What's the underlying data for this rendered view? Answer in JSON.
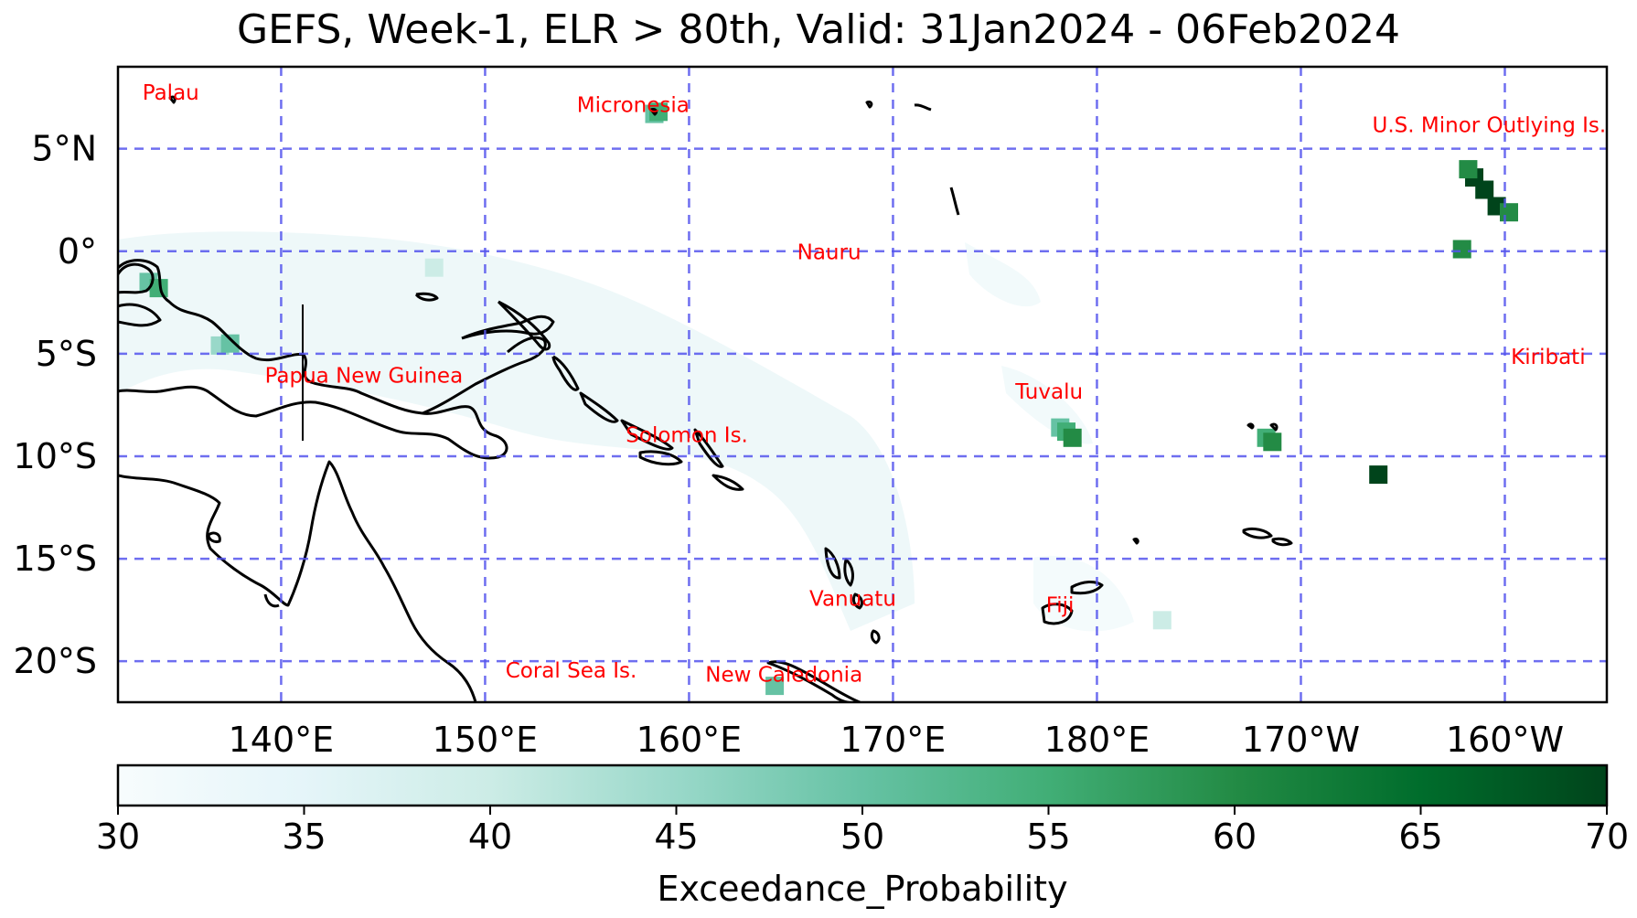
{
  "title": "GEFS, Week-1, ELR > 80th, Valid: 31Jan2024 - 06Feb2024",
  "colorbar_label": "Exceedance_Probability",
  "colormap": [
    "#f7fcfd",
    "#e5f5f9",
    "#ccece6",
    "#99d8c9",
    "#66c2a4",
    "#41ae76",
    "#238b45",
    "#006d2c",
    "#00441b"
  ],
  "grid_color": "#5555ee",
  "label_color": "#ff0000",
  "chart_data": {
    "type": "heatmap",
    "projection": "PlateCarree, central longitude 180",
    "lon_range": [
      132,
      205
    ],
    "lat_range": [
      -22,
      9
    ],
    "lon_ticks": [
      {
        "value": 140,
        "label": "140°E"
      },
      {
        "value": 150,
        "label": "150°E"
      },
      {
        "value": 160,
        "label": "160°E"
      },
      {
        "value": 170,
        "label": "170°E"
      },
      {
        "value": 180,
        "label": "180°E"
      },
      {
        "value": 190,
        "label": "170°W"
      },
      {
        "value": 200,
        "label": "160°W"
      }
    ],
    "lat_ticks": [
      {
        "value": 5,
        "label": "5°N"
      },
      {
        "value": 0,
        "label": "0°"
      },
      {
        "value": -5,
        "label": "5°S"
      },
      {
        "value": -10,
        "label": "10°S"
      },
      {
        "value": -15,
        "label": "15°S"
      },
      {
        "value": -20,
        "label": "20°S"
      }
    ],
    "grid": true,
    "colorbar": {
      "min": 30,
      "max": 70,
      "orientation": "horizontal",
      "ticks": [
        "30",
        "35",
        "40",
        "45",
        "50",
        "55",
        "60",
        "65",
        "70"
      ]
    },
    "regions": [
      {
        "name": "Palau",
        "lon": 133.2,
        "lat": 7.4
      },
      {
        "name": "Micronesia",
        "lon": 154.5,
        "lat": 6.8
      },
      {
        "name": "U.S. Minor Outlying Is.",
        "lon": 193.5,
        "lat": 5.8
      },
      {
        "name": "Nauru",
        "lon": 165.3,
        "lat": -0.4
      },
      {
        "name": "Papua New Guinea",
        "lon": 139.2,
        "lat": -6.4
      },
      {
        "name": "Kiribati",
        "lon": 200.3,
        "lat": -5.5
      },
      {
        "name": "Tuvalu",
        "lon": 176.0,
        "lat": -7.2
      },
      {
        "name": "Solomon Is.",
        "lon": 156.9,
        "lat": -9.3
      },
      {
        "name": "Vanuatu",
        "lon": 165.9,
        "lat": -17.3
      },
      {
        "name": "Fiji",
        "lon": 177.5,
        "lat": -17.6
      },
      {
        "name": "Coral Sea Is.",
        "lon": 151.0,
        "lat": -20.8
      },
      {
        "name": "New Caledonia",
        "lon": 160.8,
        "lat": -21.0
      }
    ],
    "probability_patches": [
      {
        "lon": 133.5,
        "lat": -1.5,
        "value": 50
      },
      {
        "lon": 134.0,
        "lat": -1.8,
        "value": 55
      },
      {
        "lon": 137.0,
        "lat": -4.6,
        "value": 45
      },
      {
        "lon": 137.5,
        "lat": -4.5,
        "value": 52
      },
      {
        "lon": 147.5,
        "lat": -0.8,
        "value": 42
      },
      {
        "lon": 158.3,
        "lat": 6.7,
        "value": 48
      },
      {
        "lon": 158.5,
        "lat": 6.8,
        "value": 55
      },
      {
        "lon": 178.2,
        "lat": -8.6,
        "value": 48
      },
      {
        "lon": 178.5,
        "lat": -8.8,
        "value": 55
      },
      {
        "lon": 178.8,
        "lat": -9.1,
        "value": 62
      },
      {
        "lon": 188.3,
        "lat": -9.1,
        "value": 55
      },
      {
        "lon": 188.6,
        "lat": -9.3,
        "value": 60
      },
      {
        "lon": 193.8,
        "lat": -10.9,
        "value": 68
      },
      {
        "lon": 198.5,
        "lat": 3.6,
        "value": 68
      },
      {
        "lon": 199.0,
        "lat": 3.0,
        "value": 70
      },
      {
        "lon": 199.6,
        "lat": 2.2,
        "value": 68
      },
      {
        "lon": 198.2,
        "lat": 4.0,
        "value": 60
      },
      {
        "lon": 200.2,
        "lat": 1.9,
        "value": 62
      },
      {
        "lon": 197.9,
        "lat": 0.1,
        "value": 60
      },
      {
        "lon": 164.2,
        "lat": -21.2,
        "value": 52
      },
      {
        "lon": 183.2,
        "lat": -18.0,
        "value": 40
      }
    ]
  }
}
